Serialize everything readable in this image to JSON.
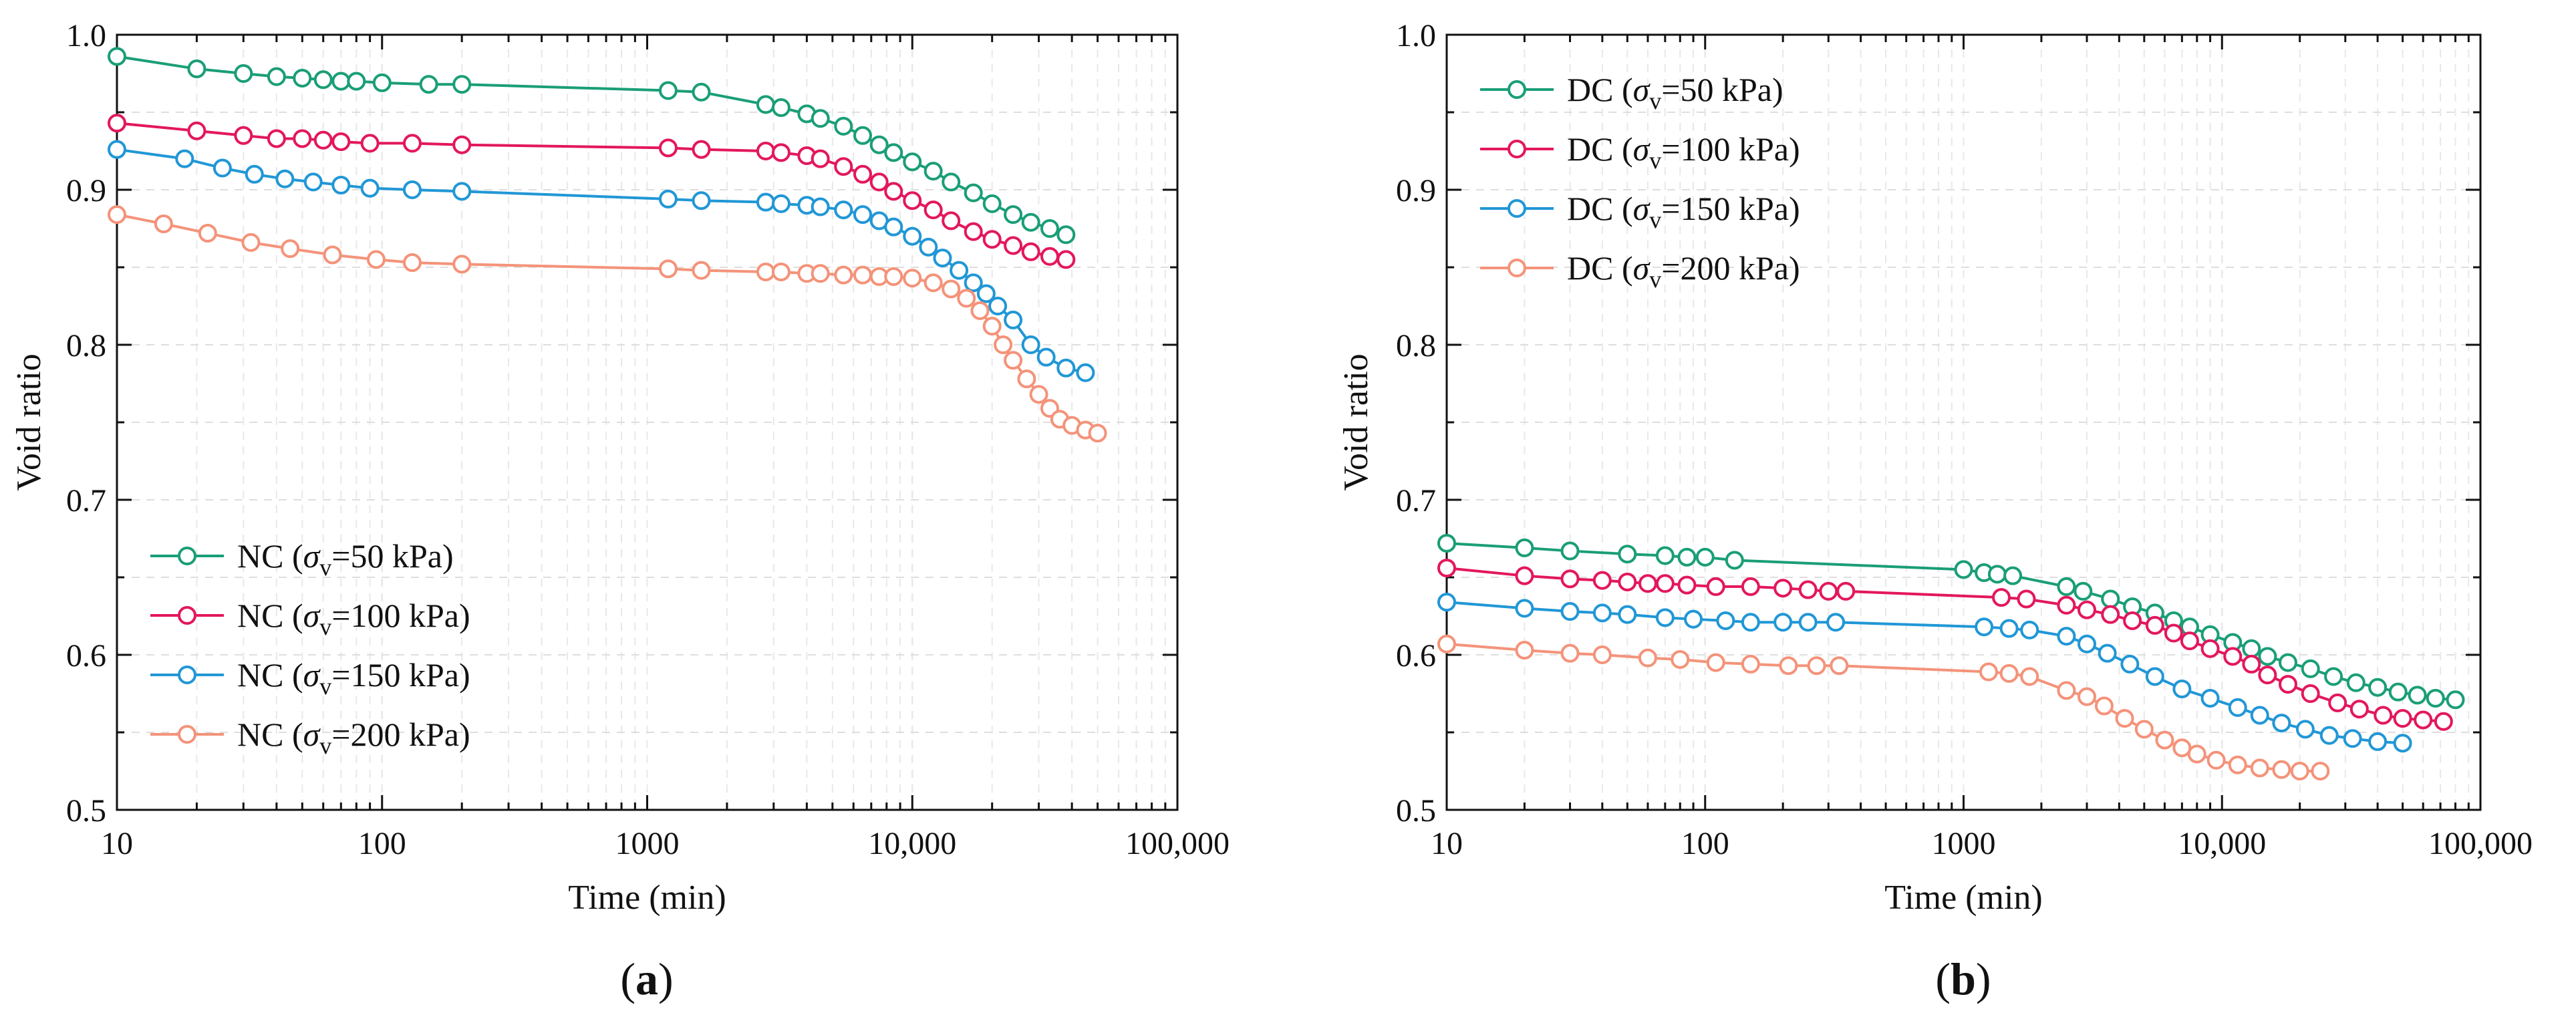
{
  "chart_data": [
    {
      "type": "line",
      "panel_label": {
        "open": "(",
        "letter": "a",
        "close": ")"
      },
      "xlabel": "Time (min)",
      "ylabel": "Void ratio",
      "xscale": "log",
      "xlim": [
        10,
        100000
      ],
      "ylim": [
        0.5,
        1.0
      ],
      "x_ticks": [
        10,
        100,
        1000,
        10000,
        100000
      ],
      "x_tick_labels": [
        "10",
        "100",
        "1000",
        "10,000",
        "100,000"
      ],
      "y_ticks": [
        0.5,
        0.6,
        0.7,
        0.8,
        0.9,
        1.0
      ],
      "y_tick_labels": [
        "0.5",
        "0.6",
        "0.7",
        "0.8",
        "0.9",
        "1.0"
      ],
      "grid": true,
      "legend_position": "bottom-left",
      "series": [
        {
          "name": "NC (σv=50 kPa)",
          "legend": {
            "prefix": "NC (",
            "sigma": "σ",
            "sub": "v",
            "suffix": "=50 kPa)"
          },
          "color": "#1a9e77",
          "x": [
            10,
            20,
            30,
            40,
            50,
            60,
            70,
            80,
            100,
            150,
            200,
            1200,
            1600,
            2800,
            3200,
            4000,
            4500,
            5500,
            6500,
            7500,
            8500,
            10000,
            12000,
            14000,
            17000,
            20000,
            24000,
            28000,
            33000,
            38000
          ],
          "y": [
            0.986,
            0.978,
            0.975,
            0.973,
            0.972,
            0.971,
            0.97,
            0.97,
            0.969,
            0.968,
            0.968,
            0.964,
            0.963,
            0.955,
            0.953,
            0.949,
            0.946,
            0.941,
            0.935,
            0.929,
            0.924,
            0.918,
            0.912,
            0.905,
            0.898,
            0.891,
            0.884,
            0.879,
            0.875,
            0.871
          ]
        },
        {
          "name": "NC (σv=100 kPa)",
          "legend": {
            "prefix": "NC (",
            "sigma": "σ",
            "sub": "v",
            "suffix": "=100 kPa)"
          },
          "color": "#e3175e",
          "x": [
            10,
            20,
            30,
            40,
            50,
            60,
            70,
            90,
            130,
            200,
            1200,
            1600,
            2800,
            3200,
            4000,
            4500,
            5500,
            6500,
            7500,
            8500,
            10000,
            12000,
            14000,
            17000,
            20000,
            24000,
            28000,
            33000,
            38000
          ],
          "y": [
            0.943,
            0.938,
            0.935,
            0.933,
            0.933,
            0.932,
            0.931,
            0.93,
            0.93,
            0.929,
            0.927,
            0.926,
            0.925,
            0.924,
            0.922,
            0.92,
            0.915,
            0.91,
            0.905,
            0.899,
            0.893,
            0.887,
            0.88,
            0.873,
            0.868,
            0.864,
            0.86,
            0.857,
            0.855
          ]
        },
        {
          "name": "NC (σv=150 kPa)",
          "legend": {
            "prefix": "NC (",
            "sigma": "σ",
            "sub": "v",
            "suffix": "=150 kPa)"
          },
          "color": "#2197d6",
          "x": [
            10,
            18,
            25,
            33,
            43,
            55,
            70,
            90,
            130,
            200,
            1200,
            1600,
            2800,
            3200,
            4000,
            4500,
            5500,
            6500,
            7500,
            8500,
            10000,
            11500,
            13000,
            15000,
            17000,
            19000,
            21000,
            24000,
            28000,
            32000,
            38000,
            45000
          ],
          "y": [
            0.926,
            0.92,
            0.914,
            0.91,
            0.907,
            0.905,
            0.903,
            0.901,
            0.9,
            0.899,
            0.894,
            0.893,
            0.892,
            0.891,
            0.89,
            0.889,
            0.887,
            0.884,
            0.88,
            0.876,
            0.87,
            0.863,
            0.856,
            0.848,
            0.84,
            0.833,
            0.825,
            0.816,
            0.8,
            0.792,
            0.785,
            0.782
          ]
        },
        {
          "name": "NC (σv=200 kPa)",
          "legend": {
            "prefix": "NC (",
            "sigma": "σ",
            "sub": "v",
            "suffix": "=200 kPa)"
          },
          "color": "#f4937a",
          "x": [
            10,
            15,
            22,
            32,
            45,
            65,
            95,
            130,
            200,
            1200,
            1600,
            2800,
            3200,
            4000,
            4500,
            5500,
            6500,
            7500,
            8500,
            10000,
            12000,
            14000,
            16000,
            18000,
            20000,
            22000,
            24000,
            27000,
            30000,
            33000,
            36000,
            40000,
            45000,
            50000
          ],
          "y": [
            0.884,
            0.878,
            0.872,
            0.866,
            0.862,
            0.858,
            0.855,
            0.853,
            0.852,
            0.849,
            0.848,
            0.847,
            0.847,
            0.846,
            0.846,
            0.845,
            0.845,
            0.844,
            0.844,
            0.843,
            0.84,
            0.836,
            0.83,
            0.822,
            0.812,
            0.8,
            0.79,
            0.778,
            0.768,
            0.759,
            0.752,
            0.748,
            0.745,
            0.743
          ]
        }
      ]
    },
    {
      "type": "line",
      "panel_label": {
        "open": "(",
        "letter": "b",
        "close": ")"
      },
      "xlabel": "Time (min)",
      "ylabel": "Void ratio",
      "xscale": "log",
      "xlim": [
        10,
        100000
      ],
      "ylim": [
        0.5,
        1.0
      ],
      "x_ticks": [
        10,
        100,
        1000,
        10000,
        100000
      ],
      "x_tick_labels": [
        "10",
        "100",
        "1000",
        "10,000",
        "100,000"
      ],
      "y_ticks": [
        0.5,
        0.6,
        0.7,
        0.8,
        0.9,
        1.0
      ],
      "y_tick_labels": [
        "0.5",
        "0.6",
        "0.7",
        "0.8",
        "0.9",
        "1.0"
      ],
      "grid": true,
      "legend_position": "top-left",
      "series": [
        {
          "name": "DC (σv=50 kPa)",
          "legend": {
            "prefix": "DC (",
            "sigma": "σ",
            "sub": "v",
            "suffix": "=50 kPa)"
          },
          "color": "#1a9e77",
          "x": [
            10,
            20,
            30,
            50,
            70,
            85,
            100,
            130,
            1000,
            1200,
            1350,
            1550,
            2500,
            2900,
            3700,
            4500,
            5500,
            6500,
            7500,
            9000,
            11000,
            13000,
            15000,
            18000,
            22000,
            27000,
            33000,
            40000,
            48000,
            57000,
            67000,
            80000
          ],
          "y": [
            0.672,
            0.669,
            0.667,
            0.665,
            0.664,
            0.663,
            0.663,
            0.661,
            0.655,
            0.653,
            0.652,
            0.651,
            0.644,
            0.641,
            0.636,
            0.631,
            0.627,
            0.622,
            0.618,
            0.613,
            0.608,
            0.604,
            0.599,
            0.595,
            0.591,
            0.586,
            0.582,
            0.579,
            0.576,
            0.574,
            0.572,
            0.571
          ]
        },
        {
          "name": "DC (σv=100 kPa)",
          "legend": {
            "prefix": "DC (",
            "sigma": "σ",
            "sub": "v",
            "suffix": "=100 kPa)"
          },
          "color": "#e3175e",
          "x": [
            10,
            20,
            30,
            40,
            50,
            60,
            70,
            85,
            110,
            150,
            200,
            250,
            300,
            350,
            1400,
            1750,
            2500,
            3000,
            3700,
            4500,
            5500,
            6500,
            7500,
            9000,
            11000,
            13000,
            15000,
            18000,
            22000,
            28000,
            34000,
            42000,
            50000,
            60000,
            72000
          ],
          "y": [
            0.656,
            0.651,
            0.649,
            0.648,
            0.647,
            0.646,
            0.646,
            0.645,
            0.644,
            0.644,
            0.643,
            0.642,
            0.641,
            0.641,
            0.637,
            0.636,
            0.632,
            0.629,
            0.626,
            0.622,
            0.619,
            0.614,
            0.609,
            0.604,
            0.599,
            0.594,
            0.587,
            0.581,
            0.575,
            0.569,
            0.565,
            0.561,
            0.559,
            0.558,
            0.557
          ]
        },
        {
          "name": "DC (σv=150 kPa)",
          "legend": {
            "prefix": "DC (",
            "sigma": "σ",
            "sub": "v",
            "suffix": "=150 kPa)"
          },
          "color": "#2197d6",
          "x": [
            10,
            20,
            30,
            40,
            50,
            70,
            90,
            120,
            150,
            200,
            250,
            320,
            1200,
            1500,
            1800,
            2500,
            3000,
            3600,
            4400,
            5500,
            7000,
            9000,
            11500,
            14000,
            17000,
            21000,
            26000,
            32000,
            40000,
            50000
          ],
          "y": [
            0.634,
            0.63,
            0.628,
            0.627,
            0.626,
            0.624,
            0.623,
            0.622,
            0.621,
            0.621,
            0.621,
            0.621,
            0.618,
            0.617,
            0.616,
            0.612,
            0.607,
            0.601,
            0.594,
            0.586,
            0.578,
            0.572,
            0.566,
            0.561,
            0.556,
            0.552,
            0.548,
            0.546,
            0.544,
            0.543
          ]
        },
        {
          "name": "DC (σv=200 kPa)",
          "legend": {
            "prefix": "DC (",
            "sigma": "σ",
            "sub": "v",
            "suffix": "=200 kPa)"
          },
          "color": "#f4937a",
          "x": [
            10,
            20,
            30,
            40,
            60,
            80,
            110,
            150,
            210,
            270,
            330,
            1250,
            1500,
            1800,
            2500,
            3000,
            3500,
            4200,
            5000,
            6000,
            7000,
            8000,
            9500,
            11500,
            14000,
            17000,
            20000,
            24000
          ],
          "y": [
            0.607,
            0.603,
            0.601,
            0.6,
            0.598,
            0.597,
            0.595,
            0.594,
            0.593,
            0.593,
            0.593,
            0.589,
            0.588,
            0.586,
            0.577,
            0.573,
            0.567,
            0.559,
            0.552,
            0.545,
            0.54,
            0.536,
            0.532,
            0.529,
            0.527,
            0.526,
            0.525,
            0.525
          ]
        }
      ]
    }
  ]
}
